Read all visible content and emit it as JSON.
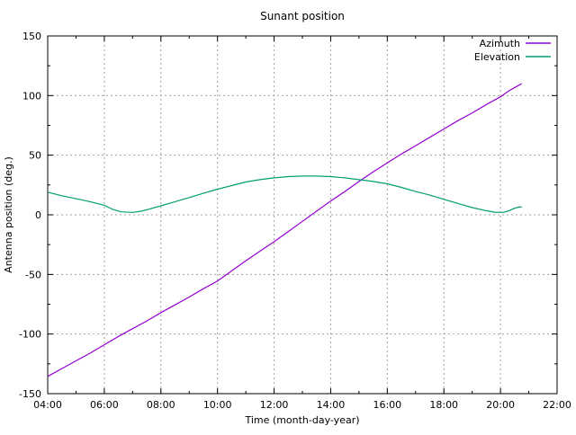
{
  "chart_data": {
    "type": "line",
    "title": "Sunant position",
    "xlabel": "Time (month-day-year)",
    "ylabel": "Antenna position (deg.)",
    "xlim_hours": [
      4,
      22
    ],
    "ylim": [
      -150,
      150
    ],
    "grid": true,
    "legend_position": "top-right-inside",
    "x_major_ticks_hours": [
      4,
      6,
      8,
      10,
      12,
      14,
      16,
      18,
      20,
      22
    ],
    "x_tick_labels": [
      "04:00",
      "06:00",
      "08:00",
      "10:00",
      "12:00",
      "14:00",
      "16:00",
      "18:00",
      "20:00",
      "22:00"
    ],
    "x_minor_ticks_hours": [
      5,
      7,
      9,
      11,
      13,
      15,
      17,
      19,
      21
    ],
    "y_major_ticks": [
      -150,
      -100,
      -50,
      0,
      50,
      100,
      150
    ],
    "y_tick_labels": [
      "-150",
      "-100",
      "-50",
      "0",
      "50",
      "100",
      "150"
    ],
    "y_minor_ticks": [
      -125,
      -75,
      -25,
      25,
      75,
      125
    ],
    "colors": {
      "background": "#ffffff",
      "border": "#000000",
      "grid": "#a0a0a0",
      "text": "#000000"
    },
    "series": [
      {
        "name": "Azimuth",
        "color": "#9400d3",
        "points": [
          [
            4.0,
            -135.5
          ],
          [
            4.5,
            -129
          ],
          [
            5.0,
            -122.5
          ],
          [
            5.5,
            -116
          ],
          [
            6.0,
            -109
          ],
          [
            6.5,
            -102
          ],
          [
            7.0,
            -95.5
          ],
          [
            7.5,
            -89
          ],
          [
            8.0,
            -82
          ],
          [
            8.5,
            -75.5
          ],
          [
            9.0,
            -69
          ],
          [
            9.5,
            -62
          ],
          [
            10.0,
            -55.5
          ],
          [
            10.5,
            -47
          ],
          [
            11.0,
            -38.5
          ],
          [
            11.5,
            -30.5
          ],
          [
            12.0,
            -22.5
          ],
          [
            12.5,
            -14
          ],
          [
            13.0,
            -5.5
          ],
          [
            13.5,
            3
          ],
          [
            14.0,
            11.5
          ],
          [
            14.5,
            19.5
          ],
          [
            15.0,
            28
          ],
          [
            15.5,
            36
          ],
          [
            16.0,
            43.5
          ],
          [
            16.5,
            51
          ],
          [
            17.0,
            58
          ],
          [
            17.5,
            65
          ],
          [
            18.0,
            72
          ],
          [
            18.5,
            79
          ],
          [
            19.0,
            85.5
          ],
          [
            19.5,
            92.5
          ],
          [
            20.0,
            99
          ],
          [
            20.3,
            104
          ],
          [
            20.6,
            108
          ],
          [
            20.75,
            110
          ]
        ]
      },
      {
        "name": "Elevation",
        "color": "#009e73",
        "points": [
          [
            4.0,
            19
          ],
          [
            4.5,
            16
          ],
          [
            5.0,
            13.5
          ],
          [
            5.5,
            11
          ],
          [
            6.0,
            8
          ],
          [
            6.3,
            4.5
          ],
          [
            6.6,
            2.5
          ],
          [
            7.0,
            2
          ],
          [
            7.3,
            3
          ],
          [
            7.6,
            4.8
          ],
          [
            8.0,
            7.5
          ],
          [
            8.5,
            11
          ],
          [
            9.0,
            14.5
          ],
          [
            9.5,
            18
          ],
          [
            10.0,
            21.5
          ],
          [
            10.5,
            24.5
          ],
          [
            11.0,
            27.5
          ],
          [
            11.5,
            29.5
          ],
          [
            12.0,
            31
          ],
          [
            12.5,
            32
          ],
          [
            13.0,
            32.5
          ],
          [
            13.5,
            32.5
          ],
          [
            14.0,
            32
          ],
          [
            14.5,
            31
          ],
          [
            15.0,
            29.5
          ],
          [
            15.5,
            28
          ],
          [
            16.0,
            26
          ],
          [
            16.5,
            23
          ],
          [
            17.0,
            19.5
          ],
          [
            17.5,
            16.5
          ],
          [
            18.0,
            13
          ],
          [
            18.5,
            9.5
          ],
          [
            19.0,
            6
          ],
          [
            19.5,
            3.5
          ],
          [
            19.8,
            2.2
          ],
          [
            20.1,
            2
          ],
          [
            20.3,
            3.5
          ],
          [
            20.5,
            5.5
          ],
          [
            20.65,
            6.5
          ],
          [
            20.75,
            6.5
          ]
        ]
      }
    ]
  }
}
